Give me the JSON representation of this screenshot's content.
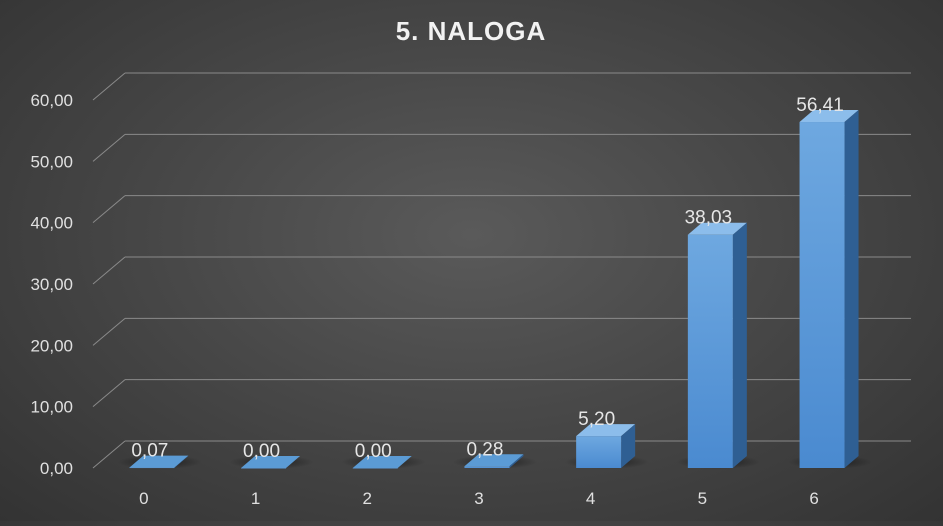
{
  "chart_data": {
    "type": "bar",
    "title": "5. NALOGA",
    "categories": [
      "0",
      "1",
      "2",
      "3",
      "4",
      "5",
      "6"
    ],
    "values": [
      0.07,
      0.0,
      0.0,
      0.28,
      5.2,
      38.03,
      56.41
    ],
    "value_labels": [
      "0,07",
      "0,00",
      "0,00",
      "0,28",
      "5,20",
      "38,03",
      "56,41"
    ],
    "y_ticks": [
      "0,00",
      "10,00",
      "20,00",
      "30,00",
      "40,00",
      "50,00",
      "60,00"
    ],
    "ylim": [
      0,
      60
    ],
    "grid": true,
    "legend": "none",
    "bar_color": "#5b9bd5",
    "background": "#474747"
  }
}
